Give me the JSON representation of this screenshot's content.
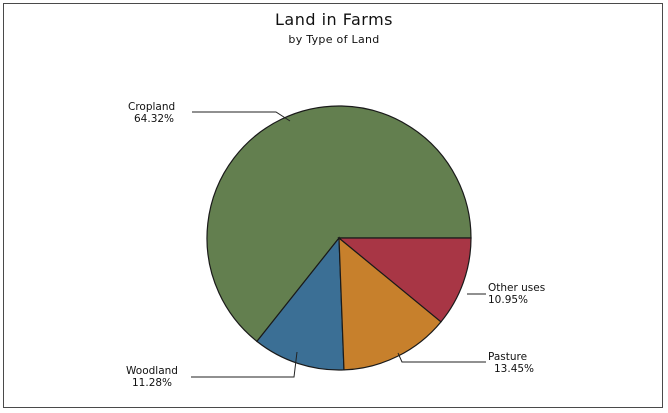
{
  "chart_data": {
    "type": "pie",
    "title": "Land in Farms",
    "subtitle": "by Type of Land",
    "slices": [
      {
        "label": "Cropland",
        "value": 64.32,
        "value_text": "64.32%",
        "color": "#637f4f"
      },
      {
        "label": "Woodland",
        "value": 11.28,
        "value_text": "11.28%",
        "color": "#3b6f95"
      },
      {
        "label": "Pasture",
        "value": 13.45,
        "value_text": "13.45%",
        "color": "#c7802c"
      },
      {
        "label": "Other uses",
        "value": 10.95,
        "value_text": "10.95%",
        "color": "#a83645"
      }
    ],
    "start_angle_deg": 0,
    "direction": "counterclockwise",
    "legend": "none"
  }
}
